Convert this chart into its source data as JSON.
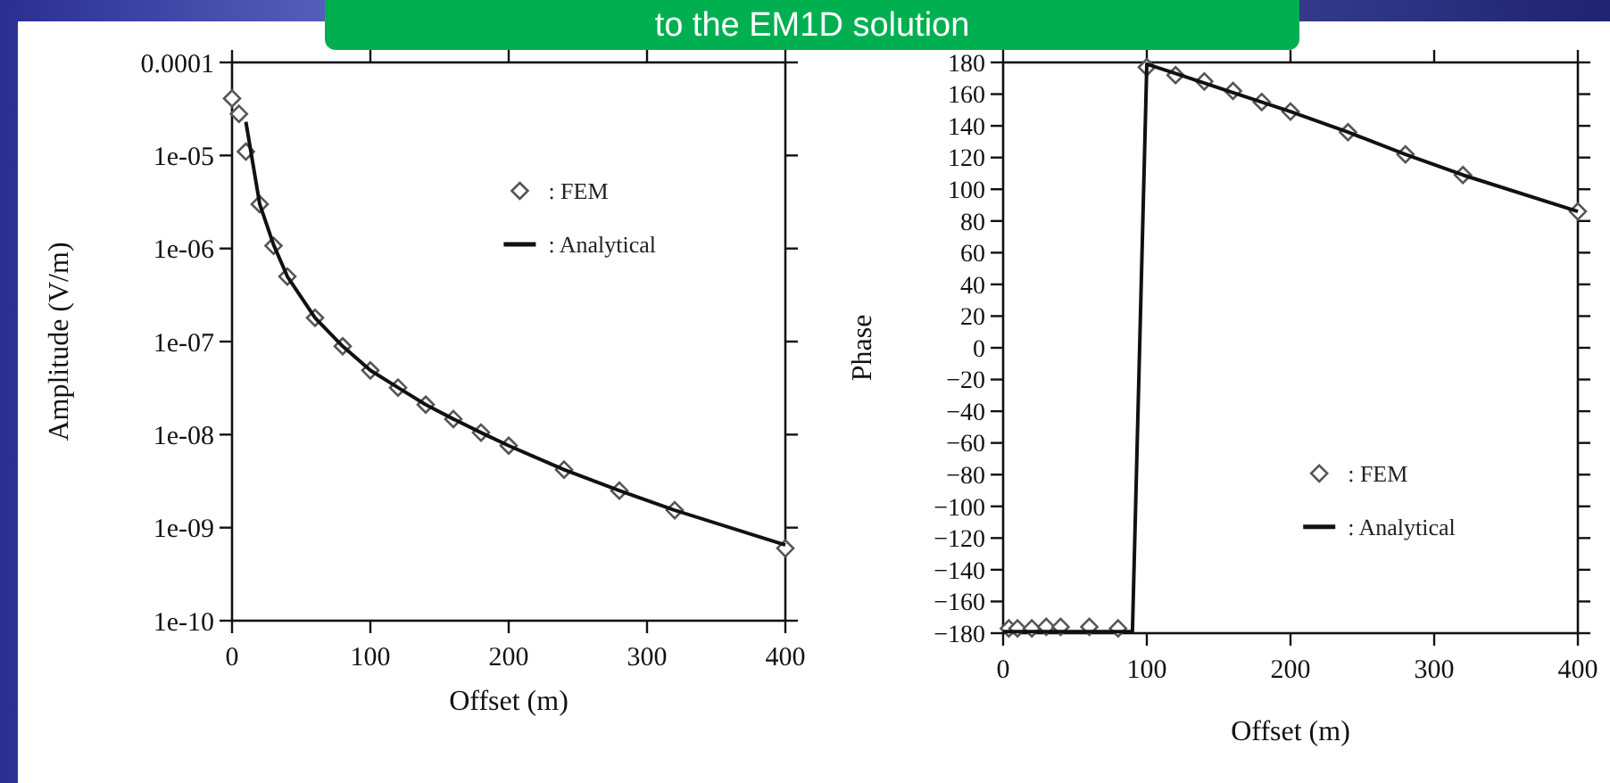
{
  "chart_data": [
    {
      "type": "line",
      "title": "to the EM1D solution",
      "xlabel": "Offset (m)",
      "ylabel": "Amplitude (V/m)",
      "log": "y",
      "xlim": [
        0,
        400
      ],
      "xticks": [
        0,
        100,
        200,
        300,
        400
      ],
      "ylim": [
        1e-10,
        0.0001
      ],
      "yticks": [
        {
          "value": 1e-10,
          "label": "1e-10"
        },
        {
          "value": 1e-09,
          "label": "1e-09"
        },
        {
          "value": 1e-08,
          "label": "1e-08"
        },
        {
          "value": 1e-07,
          "label": "1e-07"
        },
        {
          "value": 1e-06,
          "label": "1e-06"
        },
        {
          "value": 1e-05,
          "label": "1e-05"
        },
        {
          "value": 0.0001,
          "label": "0.0001"
        }
      ],
      "grid": false,
      "legend": "top right",
      "series": [
        {
          "name": ": FEM",
          "type": "scatter",
          "marker": "diamond",
          "color": "#555555",
          "x": [
            0,
            5,
            10,
            20,
            30,
            40,
            60,
            80,
            100,
            120,
            140,
            160,
            180,
            200,
            240,
            280,
            320,
            400
          ],
          "values": [
            4.1e-05,
            2.8e-05,
            1.1e-05,
            3e-06,
            1.07e-06,
            5e-07,
            1.8e-07,
            8.9e-08,
            4.9e-08,
            3.2e-08,
            2.1e-08,
            1.47e-08,
            1.05e-08,
            7.6e-09,
            4.2e-09,
            2.5e-09,
            1.54e-09,
            6e-10
          ]
        },
        {
          "name": ": Analytical",
          "type": "line",
          "marker": "none",
          "line_style": "solid",
          "color": "#111111",
          "x": [
            10,
            20,
            30,
            40,
            60,
            80,
            100,
            120,
            140,
            160,
            180,
            200,
            240,
            280,
            320,
            400
          ],
          "values": [
            2.3e-05,
            3e-06,
            1.1e-06,
            5e-07,
            1.8e-07,
            8.9e-08,
            4.9e-08,
            3.2e-08,
            2.1e-08,
            1.47e-08,
            1.05e-08,
            7.6e-09,
            4.2e-09,
            2.5e-09,
            1.54e-09,
            6.5e-10
          ]
        }
      ]
    },
    {
      "type": "line",
      "xlabel": "Offset (m)",
      "ylabel": "Phase",
      "xlim": [
        0,
        400
      ],
      "xticks": [
        0,
        100,
        200,
        300,
        400
      ],
      "ylim": [
        -180,
        180
      ],
      "yticks": [
        {
          "value": -180,
          "label": "−180"
        },
        {
          "value": -160,
          "label": "−160"
        },
        {
          "value": -140,
          "label": "−140"
        },
        {
          "value": -120,
          "label": "−120"
        },
        {
          "value": -100,
          "label": "−100"
        },
        {
          "value": -80,
          "label": "−80"
        },
        {
          "value": -60,
          "label": "−60"
        },
        {
          "value": -40,
          "label": "−40"
        },
        {
          "value": -20,
          "label": "−20"
        },
        0,
        20,
        40,
        60,
        80,
        100,
        120,
        140,
        160,
        180
      ],
      "grid": false,
      "legend": "bottom right",
      "series": [
        {
          "name": ": FEM",
          "type": "scatter",
          "marker": "diamond",
          "color": "#555555",
          "x": [
            4,
            10,
            20,
            30,
            40,
            60,
            80,
            100,
            120,
            140,
            160,
            180,
            200,
            240,
            280,
            320,
            400
          ],
          "values": [
            -177,
            -177,
            -177,
            -176,
            -176,
            -176,
            -177,
            177,
            172,
            168,
            162,
            155,
            149,
            136,
            122,
            109,
            86
          ]
        },
        {
          "name": ": Analytical",
          "type": "line",
          "marker": "none",
          "line_style": "solid",
          "color": "#111111",
          "x": [
            0,
            90,
            100,
            120,
            160,
            200,
            240,
            280,
            320,
            400
          ],
          "values": [
            -179,
            -179,
            179,
            173,
            161,
            149,
            136,
            122,
            109,
            86
          ]
        }
      ]
    }
  ]
}
